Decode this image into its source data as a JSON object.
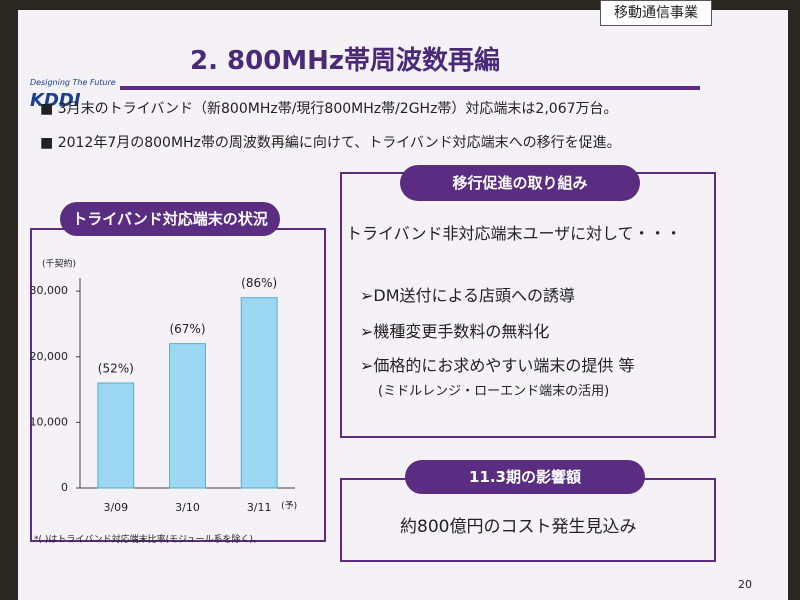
{
  "header": {
    "title": "2. 800MHz帯周波数再編",
    "tag": "移動通信事業",
    "logo_tagline": "Designing The Future",
    "logo": "KDDI"
  },
  "bullets": [
    "3月末のトライバンド（新800MHz帯/現行800MHz帯/2GHz帯）対応端末は2,067万台。",
    "2012年7月の800MHz帯の周波数再編に向けて、トライバンド対応端末への移行を促進。"
  ],
  "left_panel": {
    "heading": "トライバンド対応端末の状況",
    "footnote": "*( )はトライバンド対応端末比率(モジュール系を除く)。"
  },
  "chart_data": {
    "type": "bar",
    "unit_label": "(千契約)",
    "categories": [
      "3/09",
      "3/10",
      "3/11"
    ],
    "values": [
      16000,
      22000,
      29000
    ],
    "annotations": [
      "(52%)",
      "(67%)",
      "(86%)"
    ],
    "forecast_mark": "(予)",
    "color": "#9dd8f2",
    "ylim": [
      0,
      32000
    ],
    "yticks": [
      0,
      {
        "value": 10000,
        "label": "10,000"
      },
      {
        "value": 20000,
        "label": "20,000"
      },
      {
        "value": 30000,
        "label": "30,000"
      }
    ],
    "grid": false
  },
  "right_panel": {
    "heading": "移行促進の取り組み",
    "lead": "トライバンド非対応端末ユーザに対して・・・",
    "items": [
      "➢DM送付による店頭への誘導",
      "➢機種変更手数料の無料化",
      "➢価格的にお求めやすい端末の提供 等"
    ],
    "subnote": "(ミドルレンジ・ローエンド端末の活用)"
  },
  "impact": {
    "heading": "11.3期の影響額",
    "text": "約800億円のコスト発生見込み"
  },
  "page_number": "20"
}
